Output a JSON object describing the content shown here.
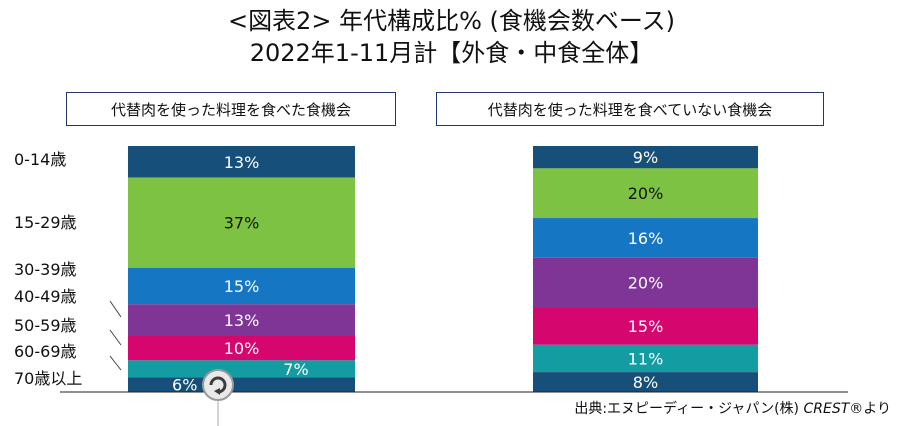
{
  "header": {
    "title_line1": "<図表2> 年代構成比% (食機会数ベース)",
    "title_line2": "2022年1-11月計【外食・中食全体】"
  },
  "panels": {
    "left_label": "代替肉を使った料理を食べた食機会",
    "right_label": "代替肉を使った料理を食べていない食機会"
  },
  "age_labels": [
    "0-14歳",
    "15-29歳",
    "30-39歳",
    "40-49歳",
    "50-59歳",
    "60-69歳",
    "70歳以上"
  ],
  "source": {
    "prefix": "出典:エヌピーディー・ジャパン(株) ",
    "brand": "CREST®",
    "suffix": "より"
  },
  "colors": {
    "age_0_14": "#16507a",
    "age_15_29": "#7dc242",
    "age_30_39": "#1577c4",
    "age_40_49": "#7e3596",
    "age_50_59": "#d5066e",
    "age_60_69": "#139da3",
    "age_70_plus": "#16507a"
  },
  "chart_data": {
    "type": "bar",
    "stacked": true,
    "normalized_percent": true,
    "categories": [
      "代替肉を使った料理を食べた食機会",
      "代替肉を使った料理を食べていない食機会"
    ],
    "series": [
      {
        "name": "0-14歳",
        "values": [
          13,
          9
        ],
        "labels": [
          "13%",
          "9%"
        ]
      },
      {
        "name": "15-29歳",
        "values": [
          37,
          20
        ],
        "labels": [
          "37%",
          "20%"
        ]
      },
      {
        "name": "30-39歳",
        "values": [
          15,
          16
        ],
        "labels": [
          "15%",
          "16%"
        ]
      },
      {
        "name": "40-49歳",
        "values": [
          13,
          20
        ],
        "labels": [
          "13%",
          "20%"
        ]
      },
      {
        "name": "50-59歳",
        "values": [
          10,
          15
        ],
        "labels": [
          "10%",
          "15%"
        ]
      },
      {
        "name": "60-69歳",
        "values": [
          7,
          11
        ],
        "labels": [
          "7%",
          "11%"
        ]
      },
      {
        "name": "70歳以上",
        "values": [
          6,
          8
        ],
        "labels": [
          "6%",
          "8%"
        ]
      }
    ],
    "ylim": [
      0,
      100
    ]
  }
}
